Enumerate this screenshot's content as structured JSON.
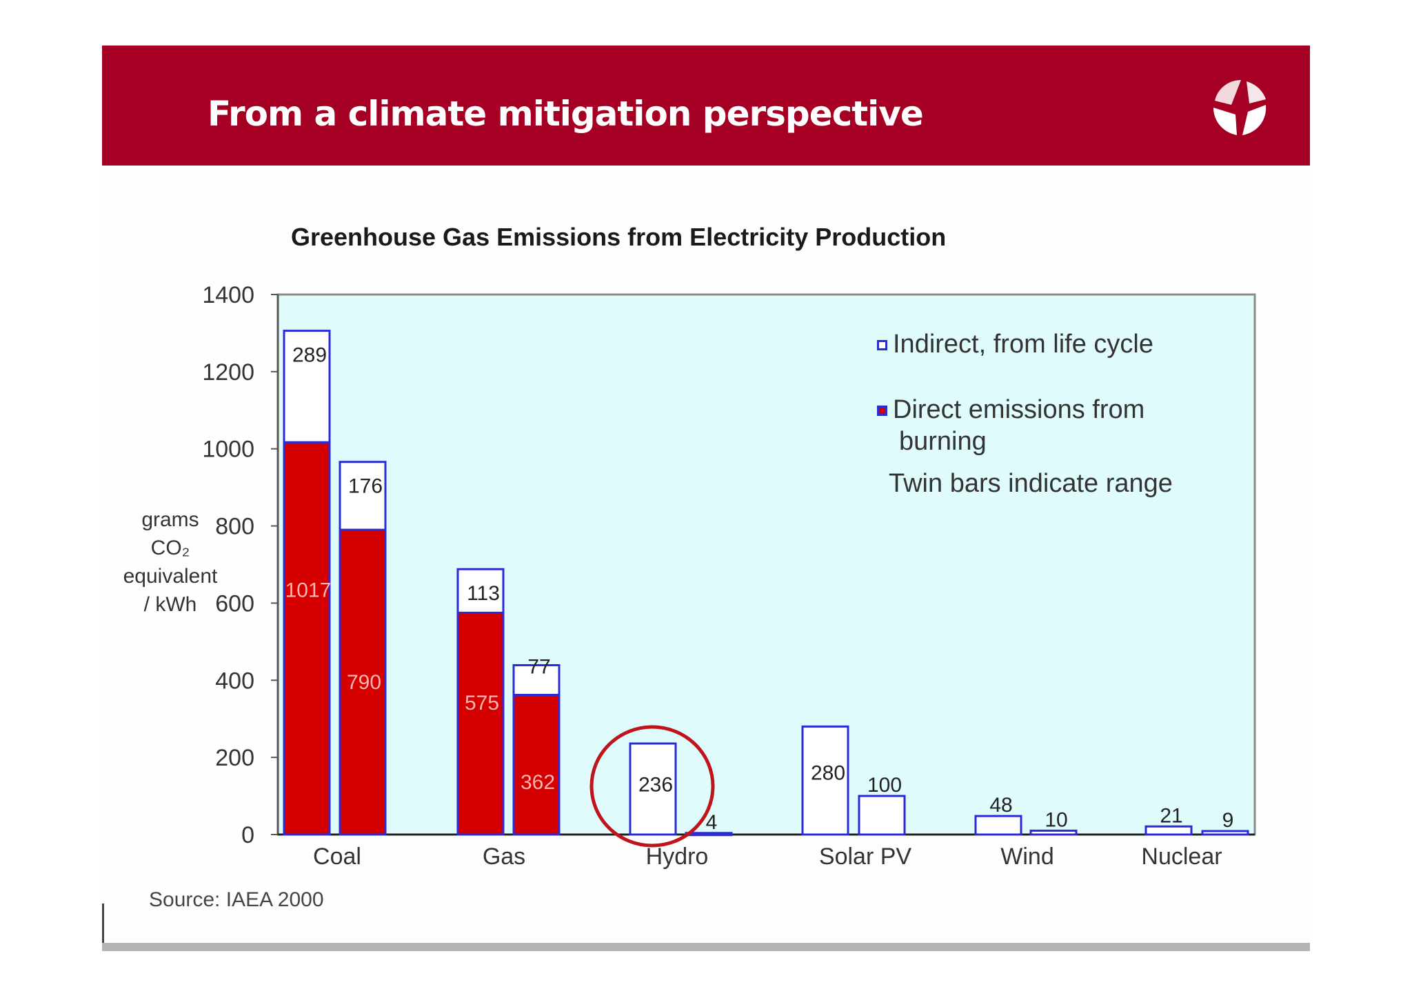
{
  "slide": {
    "title": "From a climate mitigation perspective"
  },
  "colors": {
    "header": "#a50024",
    "direct": "#d40000",
    "indirect": "#ffffff",
    "outline": "#2b2bd6",
    "plot_bg": "#e0fbfb",
    "highlight": "#c0141c"
  },
  "chart_data": {
    "type": "bar",
    "stacked": true,
    "title": "Greenhouse Gas Emissions from Electricity Production",
    "ylabel_lines": [
      "grams",
      "CO₂",
      "equivalent",
      "/ kWh"
    ],
    "xlabel": "",
    "ylim": [
      0,
      1400
    ],
    "yticks": [
      0,
      200,
      400,
      600,
      800,
      1000,
      1200,
      1400
    ],
    "categories": [
      "Coal",
      "Gas",
      "Hydro",
      "Solar PV",
      "Wind",
      "Nuclear"
    ],
    "series": [
      {
        "name": "Direct emissions from burning",
        "key": "direct"
      },
      {
        "name": "Indirect, from life cycle",
        "key": "indirect"
      }
    ],
    "bars": [
      {
        "category": "Coal",
        "direct": 1017,
        "indirect": 289,
        "direct_label": "1017",
        "indirect_label": "289"
      },
      {
        "category": "Coal",
        "direct": 790,
        "indirect": 176,
        "direct_label": "790",
        "indirect_label": "176"
      },
      {
        "category": "Gas",
        "direct": 575,
        "indirect": 113,
        "direct_label": "575",
        "indirect_label": "113"
      },
      {
        "category": "Gas",
        "direct": 362,
        "indirect": 77,
        "direct_label": "362",
        "indirect_label": "77"
      },
      {
        "category": "Hydro",
        "direct": 0,
        "indirect": 236,
        "direct_label": "",
        "indirect_label": "236"
      },
      {
        "category": "Hydro",
        "direct": 0,
        "indirect": 4,
        "direct_label": "",
        "indirect_label": "4"
      },
      {
        "category": "Solar PV",
        "direct": 0,
        "indirect": 280,
        "direct_label": "",
        "indirect_label": "280"
      },
      {
        "category": "Solar PV",
        "direct": 0,
        "indirect": 100,
        "direct_label": "",
        "indirect_label": "100"
      },
      {
        "category": "Wind",
        "direct": 0,
        "indirect": 48,
        "direct_label": "",
        "indirect_label": "48"
      },
      {
        "category": "Wind",
        "direct": 0,
        "indirect": 10,
        "direct_label": "",
        "indirect_label": "10"
      },
      {
        "category": "Nuclear",
        "direct": 0,
        "indirect": 21,
        "direct_label": "",
        "indirect_label": "21"
      },
      {
        "category": "Nuclear",
        "direct": 0,
        "indirect": 9,
        "direct_label": "",
        "indirect_label": "9"
      }
    ],
    "legend": {
      "indirect": "Indirect, from life cycle",
      "direct_line1": "Direct emissions from",
      "direct_line2": "burning",
      "note": "Twin bars indicate range"
    },
    "highlight": {
      "category": "Hydro",
      "shape": "circle"
    },
    "source": "Source: IAEA 2000"
  }
}
